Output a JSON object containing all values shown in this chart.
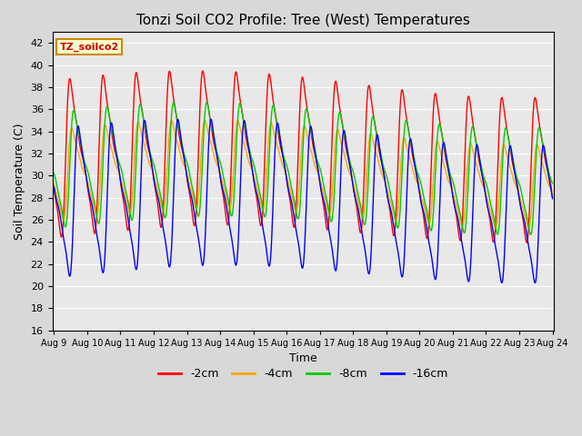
{
  "title": "Tonzi Soil CO2 Profile: Tree (West) Temperatures",
  "xlabel": "Time",
  "ylabel": "Soil Temperature (C)",
  "ylim": [
    16,
    43
  ],
  "yticks": [
    16,
    18,
    20,
    22,
    24,
    26,
    28,
    30,
    32,
    34,
    36,
    38,
    40,
    42
  ],
  "xstart_day": 9,
  "xend_day": 24,
  "legend_labels": [
    "-2cm",
    "-4cm",
    "-8cm",
    "-16cm"
  ],
  "legend_colors": [
    "#ff0000",
    "#ffa500",
    "#00cc00",
    "#0000ff"
  ],
  "label_box_facecolor": "#ffffcc",
  "label_box_edgecolor": "#cc8800",
  "label_text": "TZ_soilco2",
  "fig_facecolor": "#d8d8d8",
  "plot_facecolor": "#e8e8e8",
  "linewidth": 1.0,
  "series": {
    "cm2": {
      "color": "#ff0000",
      "label": "-2cm",
      "amplitude": 9.5,
      "mean": 31.5,
      "phase": 0.0,
      "lag": 0.0
    },
    "cm4": {
      "color": "#ffa500",
      "label": "-4cm",
      "amplitude": 5.5,
      "mean": 30.0,
      "phase": 0.0,
      "lag": 0.06
    },
    "cm8": {
      "color": "#00cc00",
      "label": "-8cm",
      "amplitude": 7.0,
      "mean": 30.5,
      "phase": 0.0,
      "lag": 0.12
    },
    "cm16": {
      "color": "#0000ff",
      "label": "-16cm",
      "amplitude": 9.0,
      "mean": 27.5,
      "phase": 0.0,
      "lag": 0.25
    }
  }
}
